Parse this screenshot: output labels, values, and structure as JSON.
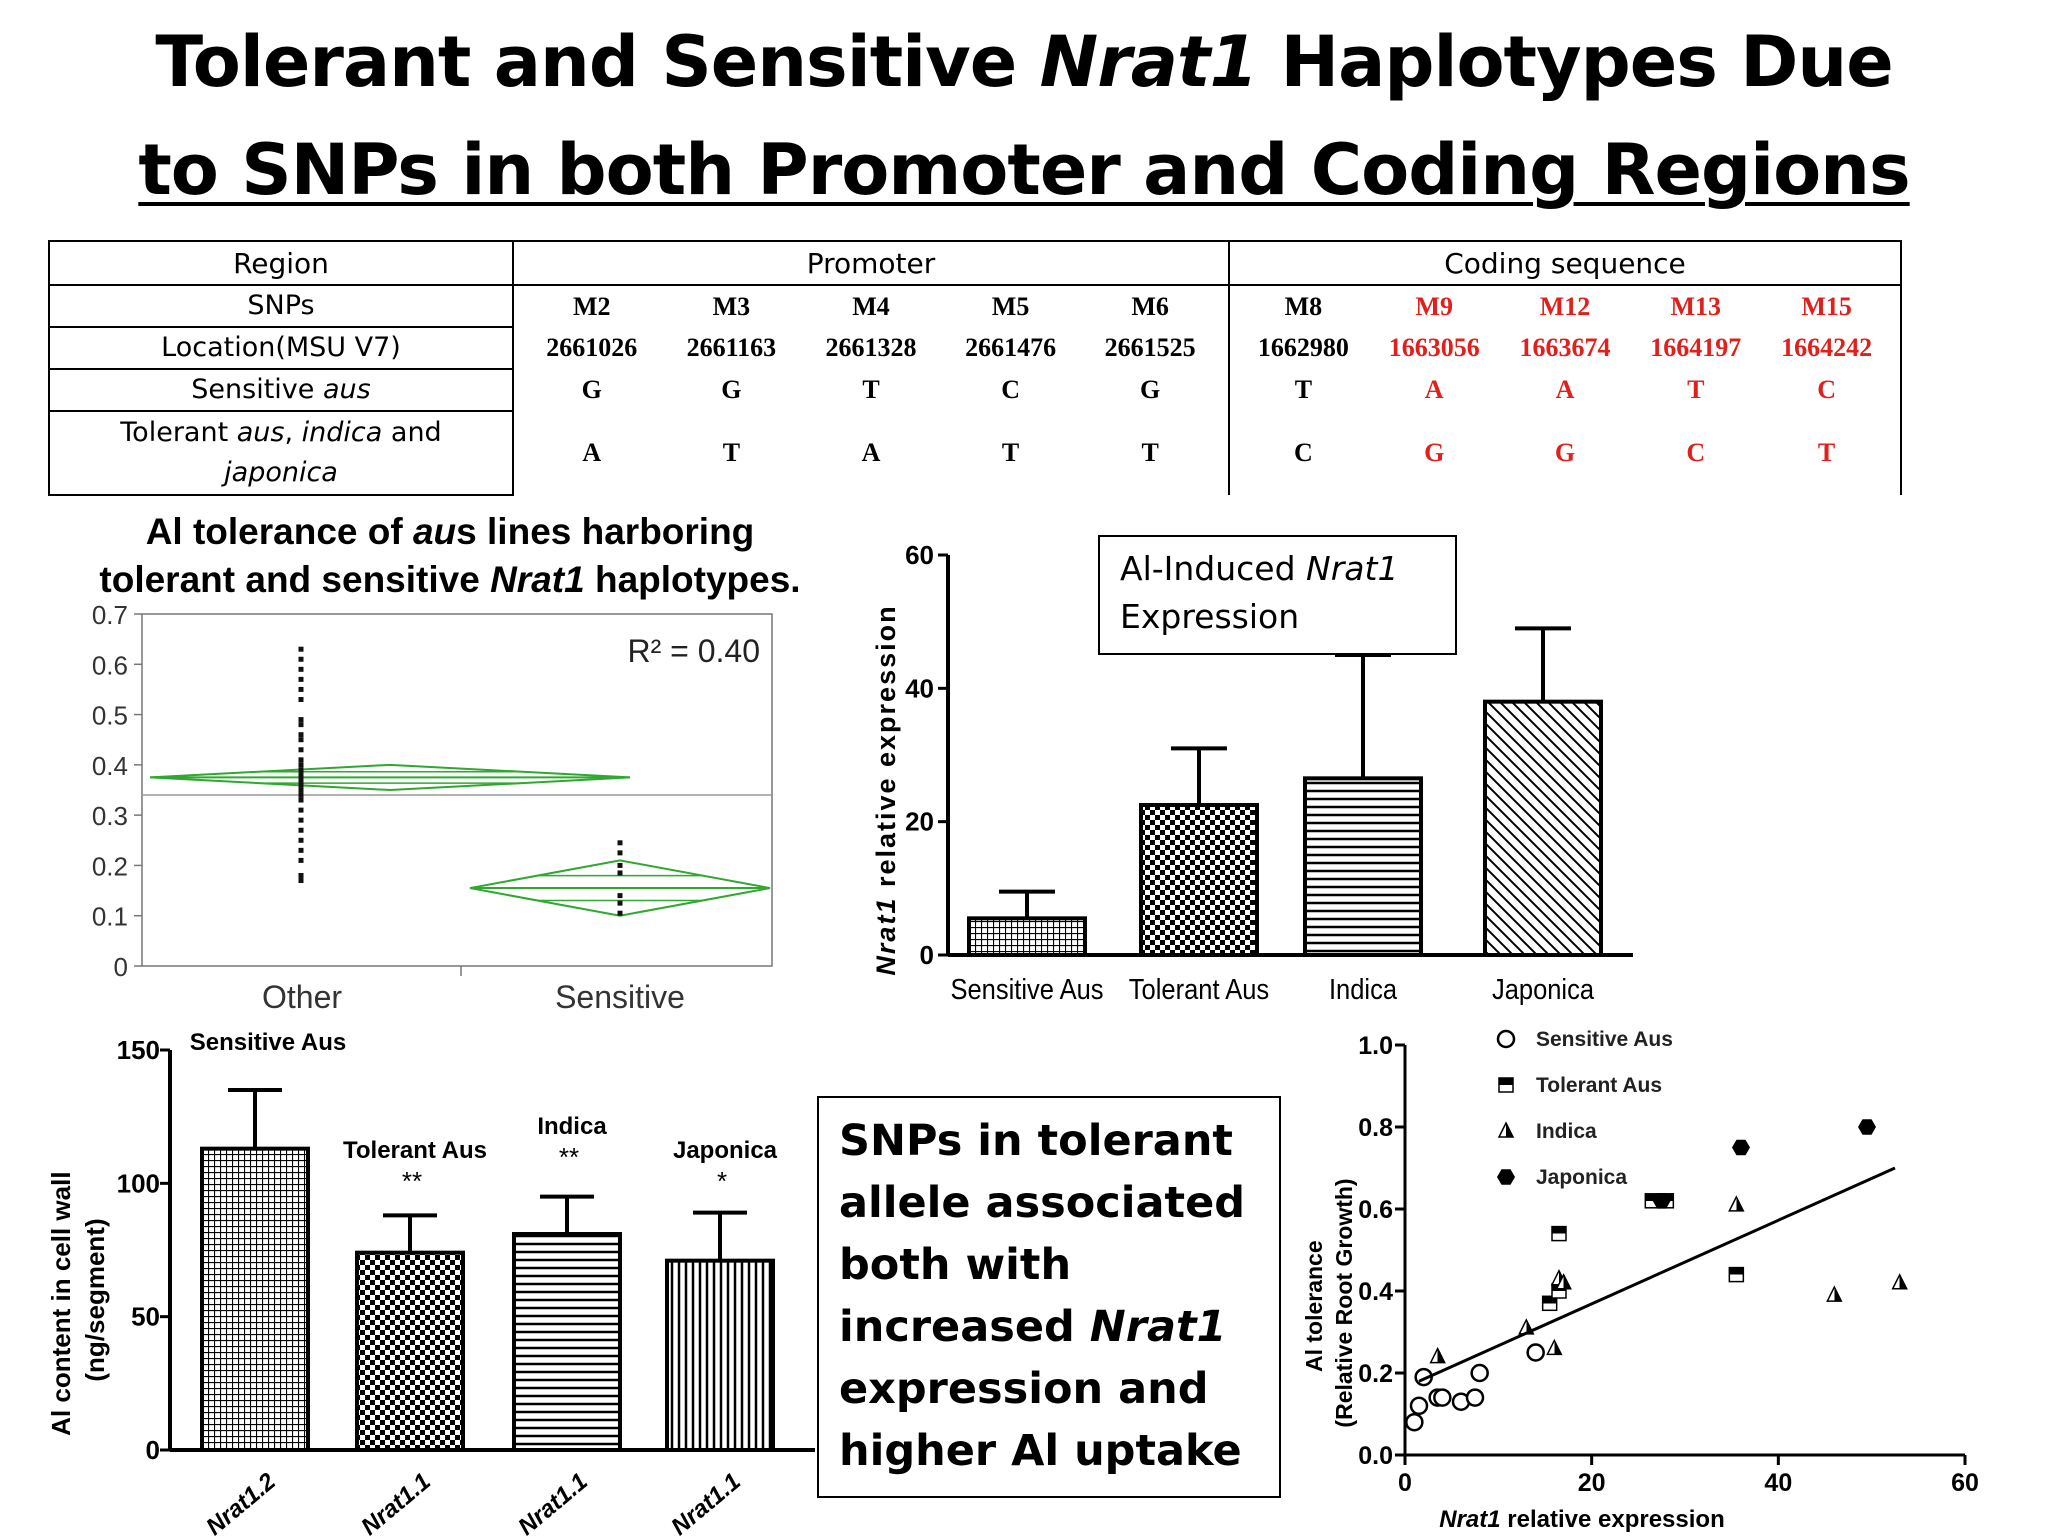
{
  "title": {
    "line1_a": "Tolerant and Sensitive ",
    "line1_gene": "Nrat1",
    "line1_b": " Haplotypes Due",
    "line2": "to SNPs in both Promoter and Coding Regions"
  },
  "snp_table": {
    "region_label": "Region",
    "promoter_label": "Promoter",
    "coding_label": "Coding sequence",
    "snps_label": "SNPs",
    "location_label": "Location(MSU V7)",
    "sensitive_label_a": "Sensitive ",
    "sensitive_label_b": "aus",
    "tolerant_label_a": "Tolerant ",
    "tolerant_label_b": "aus",
    "tolerant_label_c": ", ",
    "tolerant_label_d": "indica",
    "tolerant_label_e": " and",
    "tolerant_label_f": "japonica",
    "promoter_snps": [
      "M2",
      "M3",
      "M4",
      "M5",
      "M6"
    ],
    "promoter_locations": [
      "2661026",
      "2661163",
      "2661328",
      "2661476",
      "2661525"
    ],
    "promoter_sensitive": [
      "G",
      "G",
      "T",
      "C",
      "G"
    ],
    "promoter_tolerant": [
      "A",
      "T",
      "A",
      "T",
      "T"
    ],
    "coding_snps": [
      "M8",
      "M9",
      "M12",
      "M13",
      "M15"
    ],
    "coding_locations": [
      "1662980",
      "1663056",
      "1663674",
      "1664197",
      "1664242"
    ],
    "coding_sensitive": [
      "T",
      "A",
      "A",
      "T",
      "C"
    ],
    "coding_tolerant": [
      "C",
      "G",
      "G",
      "C",
      "T"
    ],
    "highlight_color": "#e0201c"
  },
  "chart_data": [
    {
      "type": "scatter",
      "title": "Al tolerance of aus lines harboring tolerant and sensitive Nrat1 haplotypes.",
      "title_parts": [
        "Al tolerance of ",
        "au",
        "s lines harboring",
        "tolerant and sensitive ",
        "Nrat1",
        " haplotypes."
      ],
      "categories": [
        "Other",
        "Sensitive"
      ],
      "ylim": [
        0,
        0.7
      ],
      "yticks": [
        "0",
        "0.1",
        "0.2",
        "0.3",
        "0.4",
        "0.5",
        "0.6",
        "0.7"
      ],
      "grand_mean": 0.34,
      "annotation": "R² = 0.40",
      "groups": [
        {
          "name": "Other",
          "mean": 0.375,
          "ci": [
            0.35,
            0.4
          ],
          "points": [
            0.63,
            0.61,
            0.59,
            0.57,
            0.55,
            0.53,
            0.49,
            0.48,
            0.46,
            0.45,
            0.43,
            0.41,
            0.4,
            0.39,
            0.38,
            0.37,
            0.36,
            0.35,
            0.34,
            0.33,
            0.31,
            0.29,
            0.27,
            0.25,
            0.23,
            0.21,
            0.18,
            0.17
          ]
        },
        {
          "name": "Sensitive",
          "mean": 0.155,
          "ci": [
            0.1,
            0.21
          ],
          "points": [
            0.245,
            0.225,
            0.2,
            0.185,
            0.14,
            0.125,
            0.105
          ]
        }
      ],
      "diamond_color": "#2ea82e"
    },
    {
      "type": "bar",
      "title": "Al-Induced Nrat1 Expression",
      "title_parts": [
        "Al-Induced ",
        "Nrat1",
        "Expression"
      ],
      "ylabel": "Nrat1 relative expression",
      "ylabel_parts": [
        "Nrat1",
        " relative expression"
      ],
      "categories": [
        "Sensitive Aus",
        "Tolerant Aus",
        "Indica",
        "Japonica"
      ],
      "values": [
        5.5,
        22.5,
        26.5,
        38
      ],
      "errors": [
        4,
        8.5,
        18.5,
        11
      ],
      "ylim": [
        0,
        60
      ],
      "yticks": [
        "0",
        "20",
        "40",
        "60"
      ],
      "patterns": [
        "fine-grid",
        "checker",
        "horizontal",
        "diagonal"
      ]
    },
    {
      "type": "bar",
      "ylabel": "Al content in cell wall (ng/segment)",
      "ylabel_lines": [
        "Al content in cell wall",
        "(ng/segment)"
      ],
      "categories": [
        "Nrat1.2",
        "Nrat1.1",
        "Nrat1.1",
        "Nrat1.1"
      ],
      "group_labels": [
        "Sensitive Aus",
        "Tolerant  Aus",
        "Indica",
        "Japonica"
      ],
      "significance": [
        "",
        "**",
        "**",
        "*"
      ],
      "values": [
        113,
        74,
        81,
        71
      ],
      "errors": [
        22,
        14,
        14,
        18
      ],
      "ylim": [
        0,
        150
      ],
      "yticks": [
        "0",
        "50",
        "100",
        "150"
      ],
      "patterns": [
        "fine-grid",
        "checker",
        "horizontal",
        "vertical"
      ]
    },
    {
      "type": "scatter",
      "xlabel": "Nrat1 relative expression",
      "xlabel_parts": [
        "Nrat1",
        " relative expression"
      ],
      "ylabel_lines": [
        "Al tolerance",
        "(Relative Root Growth)"
      ],
      "xlim": [
        0,
        60
      ],
      "ylim": [
        0,
        1.0
      ],
      "xticks": [
        "0",
        "20",
        "40",
        "60"
      ],
      "yticks": [
        "0.0",
        "0.2",
        "0.4",
        "0.6",
        "0.8",
        "1.0"
      ],
      "series": [
        {
          "name": "Sensitive Aus",
          "marker": "open-circle",
          "points": [
            [
              1,
              0.08
            ],
            [
              1.5,
              0.12
            ],
            [
              2,
              0.19
            ],
            [
              3.5,
              0.14
            ],
            [
              4,
              0.14
            ],
            [
              6,
              0.13
            ],
            [
              7.5,
              0.14
            ],
            [
              8,
              0.2
            ],
            [
              14,
              0.25
            ]
          ]
        },
        {
          "name": "Tolerant Aus",
          "marker": "half-square",
          "points": [
            [
              15.5,
              0.37
            ],
            [
              16.5,
              0.4
            ],
            [
              16.5,
              0.54
            ],
            [
              26.5,
              0.62
            ],
            [
              28,
              0.62
            ],
            [
              35.5,
              0.44
            ]
          ]
        },
        {
          "name": "Indica",
          "marker": "half-triangle",
          "points": [
            [
              3.5,
              0.24
            ],
            [
              13,
              0.31
            ],
            [
              16,
              0.26
            ],
            [
              16.5,
              0.43
            ],
            [
              17,
              0.42
            ],
            [
              35.5,
              0.61
            ],
            [
              46,
              0.39
            ],
            [
              53,
              0.42
            ]
          ]
        },
        {
          "name": "Japonica",
          "marker": "filled-hexagon",
          "points": [
            [
              27.5,
              0.62
            ],
            [
              36,
              0.75
            ],
            [
              49.5,
              0.8
            ]
          ]
        }
      ],
      "trendline": [
        [
          1.5,
          0.18
        ],
        [
          52.5,
          0.7
        ]
      ]
    }
  ],
  "conclusion": {
    "lines": [
      "SNPs in tolerant",
      "allele associated",
      "both with",
      "expression and",
      "higher Al uptake"
    ],
    "line4_a": "increased ",
    "line4_gene": "Nrat1"
  }
}
